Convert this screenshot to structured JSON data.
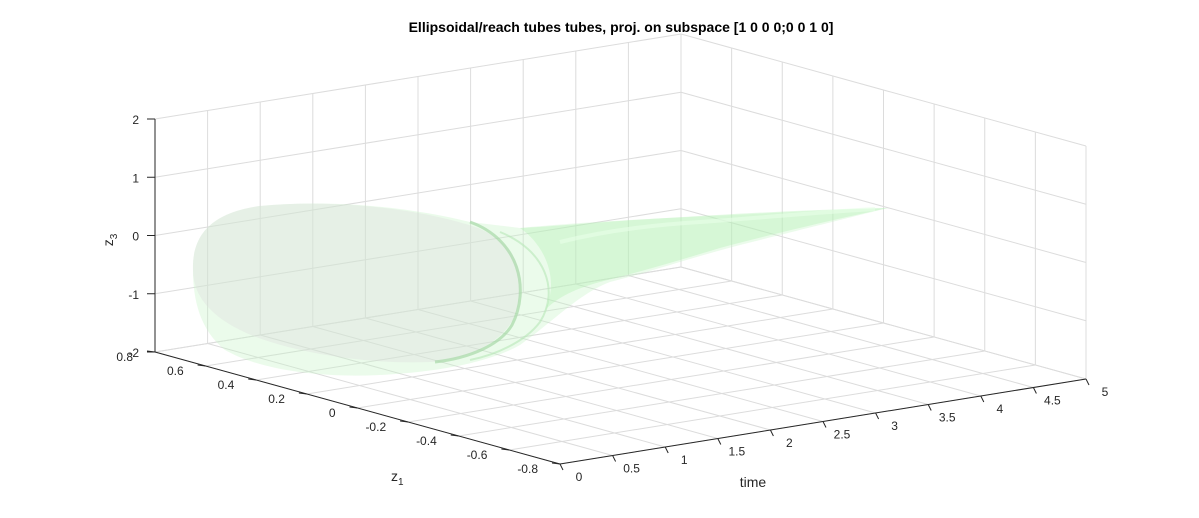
{
  "chart_data": {
    "type": "surface3d",
    "title": "Ellipsoidal/reach tubes tubes, proj. on subspace [1 0 0 0;0 0 1 0]",
    "xlabel": "time",
    "ylabel_main": "z",
    "ylabel_sub": "1",
    "zlabel_main": "z",
    "zlabel_sub": "3",
    "x_ticks": [
      "0",
      "0.5",
      "1",
      "1.5",
      "2",
      "2.5",
      "3",
      "3.5",
      "4",
      "4.5",
      "5"
    ],
    "y_ticks": [
      "0.8",
      "0.6",
      "0.4",
      "0.2",
      "0",
      "-0.2",
      "-0.4",
      "-0.6",
      "-0.8"
    ],
    "z_ticks": [
      "2",
      "1",
      "0",
      "-1",
      "-2"
    ],
    "xlim": [
      0,
      5
    ],
    "ylim": [
      -0.8,
      0.8
    ],
    "zlim": [
      -2,
      2
    ],
    "grid": true,
    "surface_color": "#b8f5b8",
    "surface_opacity": 0.35
  }
}
